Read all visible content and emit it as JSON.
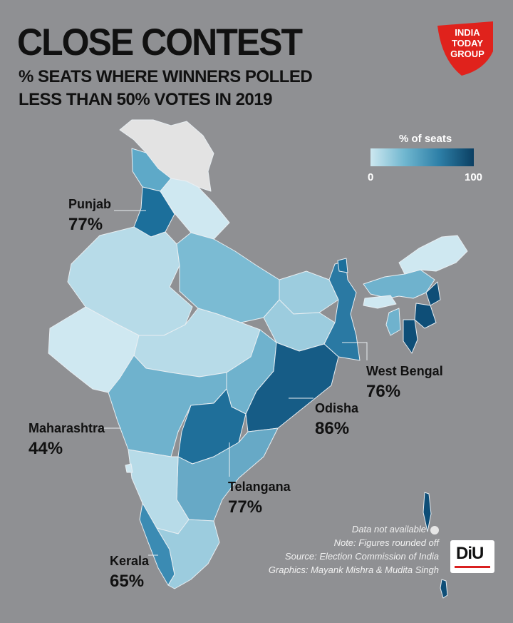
{
  "title": "CLOSE CONTEST",
  "subtitle_lines": [
    "% SEATS WHERE WINNERS POLLED",
    "LESS THAN 50% VOTES IN 2019"
  ],
  "logo": {
    "line1": "INDIA",
    "line2": "TODAY",
    "line3": "GROUP",
    "color": "#e0221c"
  },
  "legend": {
    "title": "% of seats",
    "min": "0",
    "max": "100",
    "colors": [
      "#cde8f0",
      "#6fb6cf",
      "#2d7fa7",
      "#0b3f62"
    ]
  },
  "callouts": [
    {
      "state": "Punjab",
      "value": "77%"
    },
    {
      "state": "West Bengal",
      "value": "76%"
    },
    {
      "state": "Odisha",
      "value": "86%"
    },
    {
      "state": "Maharashtra",
      "value": "44%"
    },
    {
      "state": "Telangana",
      "value": "77%"
    },
    {
      "state": "Kerala",
      "value": "65%"
    }
  ],
  "notes": {
    "not_available": "Data not available",
    "note": "Note: Figures rounded off",
    "source": "Source: Election Commission of India",
    "graphics": "Graphics: Mayank Mishra & Mudita Singh"
  },
  "diu_logo": "DiU",
  "not_available_color": "#e6e6e6",
  "background_color": "#8f9093"
}
